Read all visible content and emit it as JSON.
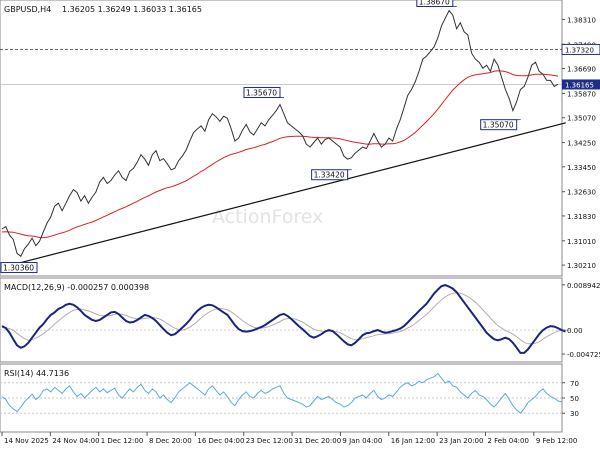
{
  "header": {
    "symbol": "GBPUSD,H4",
    "ohlc": "1.36205 1.36249 1.36033 1.36165"
  },
  "watermark": "ActionForex",
  "colors": {
    "price_line": "#333333",
    "ma_line": "#e02020",
    "trendline": "#111111",
    "macd_main": "#1a237e",
    "macd_signal": "#b0b0b0",
    "rsi_line": "#5aa8e6",
    "label_border": "#1f2d8a",
    "current_price_box": "#1f2d8a",
    "grid": "#d8d8d8"
  },
  "chart_data": [
    {
      "type": "line",
      "panel": "price",
      "title": "GBPUSD,H4 1.36205 1.36249 1.36033 1.36165",
      "x_tick_labels": [
        "14 Nov 2025",
        "24 Nov 04:00",
        "1 Dec 12:00",
        "8 Dec 20:00",
        "16 Dec 04:00",
        "23 Dec 12:00",
        "31 Dec 20:00",
        "9 Jan 04:00",
        "16 Jan 12:00",
        "23 Jan 20:00",
        "2 Feb 04:00",
        "9 Feb 12:00"
      ],
      "y_tick_labels": [
        "1.38310",
        "1.37490",
        "1.36690",
        "1.35870",
        "1.35070",
        "1.34250",
        "1.33450",
        "1.32630",
        "1.31830",
        "1.31010",
        "1.30210"
      ],
      "ylim": [
        1.2985,
        1.3895
      ],
      "current_price": "1.36165",
      "horizontal_levels": [
        {
          "value": 1.3732,
          "label": "1.37320",
          "style": "dashed"
        },
        {
          "value": 1.36165,
          "label": "",
          "style": "solid-gray"
        }
      ],
      "annotations": [
        {
          "label": "1.30360",
          "value": 1.3036,
          "index": 4
        },
        {
          "label": "1.35670",
          "value": 1.3567,
          "index": 74
        },
        {
          "label": "1.33420",
          "value": 1.3342,
          "index": 92
        },
        {
          "label": "1.38670",
          "value": 1.3867,
          "index": 120
        },
        {
          "label": "1.35070",
          "value": 1.3507,
          "index": 137
        }
      ],
      "trendline": {
        "from": {
          "index": 4,
          "value": 1.3026
        },
        "to": {
          "index": 149,
          "value": 1.349
        }
      },
      "series": [
        {
          "values": [
            1.314,
            1.3148,
            1.312,
            1.3105,
            1.306,
            1.305,
            1.3075,
            1.309,
            1.311,
            1.3085,
            1.31,
            1.313,
            1.316,
            1.318,
            1.3215,
            1.3225,
            1.32,
            1.3225,
            1.325,
            1.327,
            1.326,
            1.3232,
            1.325,
            1.3225,
            1.3245,
            1.3262,
            1.3295,
            1.331,
            1.329,
            1.33,
            1.3318,
            1.3332,
            1.331,
            1.33,
            1.333,
            1.334,
            1.336,
            1.3385,
            1.337,
            1.335,
            1.3385,
            1.3398,
            1.3365,
            1.3372,
            1.3355,
            1.3335,
            1.334,
            1.3365,
            1.338,
            1.34,
            1.343,
            1.3458,
            1.347,
            1.348,
            1.3462,
            1.35,
            1.352,
            1.351,
            1.3495,
            1.3512,
            1.3505,
            1.347,
            1.343,
            1.344,
            1.3465,
            1.3485,
            1.346,
            1.345,
            1.347,
            1.349,
            1.348,
            1.35,
            1.3515,
            1.353,
            1.355,
            1.352,
            1.349,
            1.348,
            1.347,
            1.346,
            1.3448,
            1.342,
            1.341,
            1.3425,
            1.344,
            1.342,
            1.3435,
            1.344,
            1.343,
            1.342,
            1.341,
            1.338,
            1.337,
            1.3375,
            1.339,
            1.34,
            1.341,
            1.3405,
            1.343,
            1.3455,
            1.343,
            1.341,
            1.342,
            1.344,
            1.343,
            1.347,
            1.35,
            1.354,
            1.358,
            1.36,
            1.3625,
            1.366,
            1.37,
            1.371,
            1.3725,
            1.374,
            1.377,
            1.381,
            1.3835,
            1.386,
            1.3845,
            1.38,
            1.382,
            1.379,
            1.378,
            1.372,
            1.37,
            1.369,
            1.367,
            1.368,
            1.366,
            1.37,
            1.368,
            1.364,
            1.36,
            1.357,
            1.353,
            1.356,
            1.36,
            1.361,
            1.364,
            1.368,
            1.369,
            1.366,
            1.365,
            1.363,
            1.363,
            1.361,
            1.3617
          ]
        },
        {
          "name": "",
          "values": [
            1.313,
            1.3131,
            1.313,
            1.3129,
            1.3126,
            1.3123,
            1.312,
            1.3118,
            1.3117,
            1.3115,
            1.3112,
            1.3111,
            1.3113,
            1.3116,
            1.312,
            1.3124,
            1.3127,
            1.3131,
            1.3136,
            1.3142,
            1.3147,
            1.3151,
            1.3155,
            1.3159,
            1.3163,
            1.3168,
            1.3174,
            1.318,
            1.3185,
            1.3191,
            1.3197,
            1.3203,
            1.3208,
            1.3213,
            1.3219,
            1.3225,
            1.3231,
            1.3238,
            1.3244,
            1.3249,
            1.3256,
            1.3262,
            1.3267,
            1.3272,
            1.3276,
            1.3279,
            1.3283,
            1.3288,
            1.3293,
            1.3299,
            1.3306,
            1.3314,
            1.3321,
            1.333,
            1.3336,
            1.3345,
            1.3353,
            1.3361,
            1.3368,
            1.3375,
            1.3381,
            1.3386,
            1.3389,
            1.3393,
            1.3397,
            1.3402,
            1.3405,
            1.3408,
            1.3412,
            1.3416,
            1.3419,
            1.3424,
            1.3428,
            1.3433,
            1.3439,
            1.3442,
            1.3444,
            1.3445,
            1.3446,
            1.3446,
            1.3446,
            1.3445,
            1.3443,
            1.3442,
            1.3442,
            1.3441,
            1.3441,
            1.3441,
            1.344,
            1.3439,
            1.3437,
            1.3434,
            1.3431,
            1.3428,
            1.3426,
            1.3424,
            1.3422,
            1.342,
            1.342,
            1.3421,
            1.3421,
            1.342,
            1.342,
            1.3421,
            1.3421,
            1.3423,
            1.3427,
            1.3432,
            1.344,
            1.3449,
            1.3458,
            1.347,
            1.3482,
            1.3494,
            1.3507,
            1.352,
            1.3535,
            1.3551,
            1.3567,
            1.3583,
            1.3598,
            1.361,
            1.3622,
            1.3632,
            1.364,
            1.3645,
            1.3648,
            1.365,
            1.3652,
            1.3654,
            1.3656,
            1.366,
            1.3662,
            1.3661,
            1.3659,
            1.3655,
            1.3649,
            1.3646,
            1.3645,
            1.3645,
            1.3646,
            1.3648,
            1.365,
            1.365,
            1.365,
            1.3649,
            1.3648,
            1.3646,
            1.3644
          ]
        }
      ]
    },
    {
      "type": "line",
      "panel": "macd",
      "title": "MACD(12,26,9) -0.000257 0.000398",
      "y_tick_labels": [
        "0.008942",
        "0.00",
        "-0.004725"
      ],
      "ylim": [
        -0.0059,
        0.0099
      ],
      "zero_line": 0,
      "series": [
        {
          "name": "MACD",
          "values": [
            0.0008,
            0.0004,
            -0.0005,
            -0.0018,
            -0.003,
            -0.0035,
            -0.0032,
            -0.0025,
            -0.0015,
            -0.0005,
            0.0005,
            0.0012,
            0.0022,
            0.003,
            0.0035,
            0.0042,
            0.0045,
            0.005,
            0.0052,
            0.005,
            0.0045,
            0.0038,
            0.003,
            0.0025,
            0.002,
            0.0018,
            0.002,
            0.0025,
            0.003,
            0.0035,
            0.0036,
            0.0032,
            0.0025,
            0.0018,
            0.0015,
            0.0016,
            0.002,
            0.0025,
            0.003,
            0.0028,
            0.0024,
            0.0018,
            0.001,
            0.0002,
            -0.0005,
            -0.001,
            -0.0008,
            -0.0002,
            0.0005,
            0.0012,
            0.002,
            0.003,
            0.0038,
            0.0044,
            0.0048,
            0.005,
            0.0049,
            0.0045,
            0.004,
            0.0035,
            0.003,
            0.002,
            0.001,
            0.0002,
            -0.0002,
            -0.0003,
            -0.0002,
            0.0,
            0.0003,
            0.0006,
            0.001,
            0.0015,
            0.002,
            0.0025,
            0.003,
            0.0032,
            0.0028,
            0.0022,
            0.0015,
            0.0008,
            0.0002,
            -0.0005,
            -0.0012,
            -0.0015,
            -0.0012,
            -0.0008,
            -0.0003,
            0.0,
            -0.0002,
            -0.0008,
            -0.0015,
            -0.0022,
            -0.0028,
            -0.003,
            -0.0025,
            -0.0018,
            -0.001,
            -0.0006,
            -0.0005,
            -0.0002,
            0.0,
            -0.0003,
            -0.0005,
            -0.0004,
            -0.0002,
            0.0,
            0.0003,
            0.0008,
            0.0015,
            0.0023,
            0.003,
            0.0038,
            0.0045,
            0.0052,
            0.0062,
            0.0072,
            0.008,
            0.0087,
            0.0089,
            0.0086,
            0.0082,
            0.0075,
            0.0065,
            0.0055,
            0.0045,
            0.0035,
            0.0025,
            0.0015,
            0.0005,
            -0.0005,
            -0.0012,
            -0.0018,
            -0.002,
            -0.0018,
            -0.0015,
            -0.0018,
            -0.0025,
            -0.0035,
            -0.0045,
            -0.0045,
            -0.0038,
            -0.0028,
            -0.0018,
            -0.0008,
            0.0,
            0.0005,
            0.0008,
            0.0007,
            0.0004,
            0.0,
            -0.0003
          ]
        },
        {
          "name": "Signal",
          "values": [
            0.0005,
            0.0005,
            0.0003,
            0.0,
            -0.0006,
            -0.0012,
            -0.0017,
            -0.002,
            -0.0019,
            -0.0016,
            -0.0012,
            -0.0007,
            -0.0001,
            0.0005,
            0.0012,
            0.0018,
            0.0024,
            0.003,
            0.0035,
            0.0039,
            0.0041,
            0.0042,
            0.004,
            0.0038,
            0.0035,
            0.0032,
            0.0029,
            0.0028,
            0.0028,
            0.0029,
            0.0031,
            0.0032,
            0.0031,
            0.0029,
            0.0026,
            0.0024,
            0.0022,
            0.0022,
            0.0023,
            0.0024,
            0.0025,
            0.0024,
            0.0022,
            0.0018,
            0.0013,
            0.0008,
            0.0004,
            0.0001,
            0.0,
            0.0002,
            0.0006,
            0.0011,
            0.0017,
            0.0024,
            0.003,
            0.0035,
            0.0039,
            0.0042,
            0.0043,
            0.0042,
            0.004,
            0.0036,
            0.0031,
            0.0025,
            0.0019,
            0.0014,
            0.0009,
            0.0006,
            0.0004,
            0.0004,
            0.0005,
            0.0007,
            0.001,
            0.0013,
            0.0017,
            0.0021,
            0.0023,
            0.0023,
            0.0022,
            0.0019,
            0.0016,
            0.0011,
            0.0006,
            0.0002,
            -0.0001,
            -0.0002,
            -0.0003,
            -0.0002,
            -0.0002,
            -0.0003,
            -0.0005,
            -0.0009,
            -0.0013,
            -0.0017,
            -0.0019,
            -0.0019,
            -0.0017,
            -0.0015,
            -0.0013,
            -0.0011,
            -0.0009,
            -0.0008,
            -0.0007,
            -0.0007,
            -0.0006,
            -0.0004,
            -0.0003,
            0.0,
            0.0004,
            0.0008,
            0.0013,
            0.0019,
            0.0025,
            0.0031,
            0.0038,
            0.0046,
            0.0053,
            0.006,
            0.0066,
            0.007,
            0.0073,
            0.0074,
            0.0073,
            0.007,
            0.0066,
            0.0061,
            0.0055,
            0.0048,
            0.004,
            0.0032,
            0.0024,
            0.0016,
            0.0009,
            0.0004,
            -0.0001,
            -0.0004,
            -0.0008,
            -0.0013,
            -0.0019,
            -0.0024,
            -0.0027,
            -0.0027,
            -0.0026,
            -0.0023,
            -0.0018,
            -0.0013,
            -0.0009,
            -0.0005,
            -0.0002,
            0.0,
            0.0,
            0.0
          ]
        }
      ]
    },
    {
      "type": "line",
      "panel": "rsi",
      "title": "RSI(14) 44.7136",
      "y_tick_labels": [
        "70",
        "50",
        "30"
      ],
      "ylim": [
        8,
        92
      ],
      "levels": [
        70,
        50,
        30
      ],
      "series": [
        {
          "name": "RSI(14)",
          "values": [
            52,
            48,
            40,
            36,
            32,
            38,
            45,
            50,
            55,
            48,
            52,
            60,
            62,
            58,
            64,
            60,
            56,
            62,
            66,
            58,
            52,
            56,
            50,
            55,
            60,
            64,
            58,
            62,
            57,
            60,
            63,
            54,
            50,
            56,
            62,
            58,
            64,
            68,
            60,
            56,
            62,
            58,
            50,
            54,
            48,
            44,
            50,
            58,
            62,
            66,
            70,
            66,
            62,
            58,
            54,
            62,
            66,
            60,
            54,
            58,
            52,
            44,
            40,
            48,
            54,
            58,
            52,
            50,
            56,
            60,
            56,
            58,
            62,
            64,
            66,
            56,
            50,
            48,
            46,
            44,
            42,
            38,
            40,
            46,
            52,
            48,
            50,
            52,
            48,
            44,
            42,
            38,
            40,
            44,
            50,
            52,
            54,
            50,
            56,
            60,
            52,
            48,
            50,
            54,
            52,
            58,
            64,
            68,
            70,
            66,
            68,
            72,
            70,
            74,
            76,
            78,
            82,
            76,
            70,
            72,
            66,
            64,
            58,
            54,
            50,
            56,
            60,
            54,
            52,
            48,
            42,
            38,
            44,
            50,
            56,
            48,
            40,
            34,
            30,
            36,
            44,
            48,
            52,
            58,
            62,
            56,
            52,
            50,
            46,
            45
          ]
        }
      ]
    }
  ]
}
